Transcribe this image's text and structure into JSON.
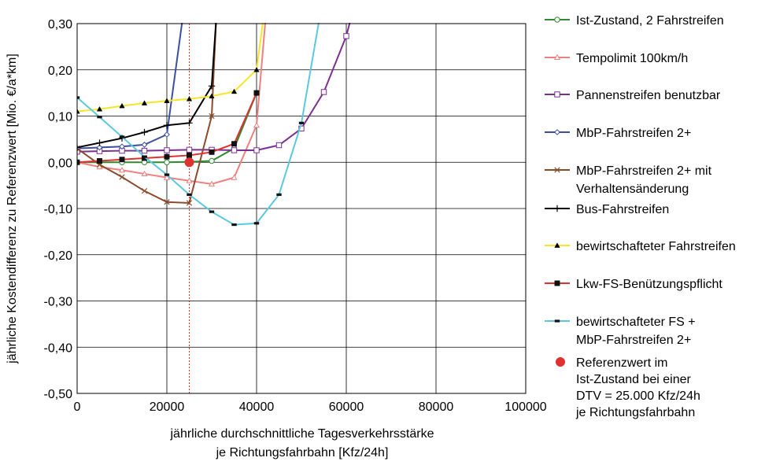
{
  "chart_data": {
    "type": "line",
    "xlabel": [
      "jährliche durchschnittliche Tagesverkehrsstärke",
      "je Richtungsfahrbahn [Kfz/24h]"
    ],
    "ylabel": "jährliche Kostendifferenz zu Referenzwert [Mio. €/a*km]",
    "xlim": [
      0,
      100000
    ],
    "ylim": [
      -0.5,
      0.3
    ],
    "xticks": [
      0,
      20000,
      40000,
      60000,
      80000,
      100000
    ],
    "xtick_labels": [
      "0",
      "20000",
      "40000",
      "60000",
      "80000",
      "100000"
    ],
    "yticks": [
      0.3,
      0.2,
      0.1,
      0.0,
      -0.1,
      -0.2,
      -0.3,
      -0.4,
      -0.5
    ],
    "ytick_labels": [
      "0,30",
      "0,20",
      "0,10",
      "0,00",
      "-0,10",
      "-0,20",
      "-0,30",
      "-0,40",
      "-0,50"
    ],
    "grid": "horizontal and vertical",
    "legend_position": "right",
    "series": [
      {
        "name": "Ist-Zustand, 2 Fahrstreifen",
        "color": "#2e8b2e",
        "marker": "circle-open",
        "x": [
          0,
          5000,
          10000,
          15000,
          20000,
          25000,
          30000,
          35000,
          40000
        ],
        "y": [
          0.0,
          0.0,
          0.0,
          0.0,
          0.0,
          0.001,
          0.003,
          0.03,
          0.15
        ]
      },
      {
        "name": "Tempolimit 100km/h",
        "color": "#f08080",
        "marker": "triangle-open",
        "x": [
          0,
          5000,
          10000,
          15000,
          20000,
          25000,
          30000,
          35000,
          40000,
          42000
        ],
        "y": [
          0.0,
          -0.01,
          -0.017,
          -0.025,
          -0.033,
          -0.04,
          -0.047,
          -0.033,
          0.08,
          0.31
        ]
      },
      {
        "name": "Pannenstreifen benutzbar",
        "color": "#7b2f8f",
        "marker": "square-open",
        "x": [
          0,
          5000,
          10000,
          15000,
          20000,
          25000,
          30000,
          35000,
          40000,
          45000,
          50000,
          55000,
          60000,
          61000
        ],
        "y": [
          0.023,
          0.024,
          0.025,
          0.025,
          0.026,
          0.027,
          0.027,
          0.026,
          0.026,
          0.037,
          0.073,
          0.152,
          0.273,
          0.31
        ]
      },
      {
        "name": "MbP-Fahrstreifen 2+",
        "color": "#3a4fa0",
        "marker": "diamond-open",
        "x": [
          0,
          5000,
          10000,
          15000,
          20000,
          23500
        ],
        "y": [
          0.03,
          0.032,
          0.034,
          0.038,
          0.06,
          0.31
        ]
      },
      {
        "name": "MbP-Fahrstreifen 2+ mit Verhaltensänderung",
        "color": "#8b4a2b",
        "marker": "x",
        "x": [
          0,
          5000,
          10000,
          15000,
          20000,
          25000,
          30000,
          31000
        ],
        "y": [
          0.03,
          -0.005,
          -0.032,
          -0.062,
          -0.086,
          -0.088,
          0.1,
          0.31
        ]
      },
      {
        "name": "Bus-Fahrstreifen",
        "color": "#000000",
        "marker": "plus",
        "x": [
          0,
          5000,
          10000,
          15000,
          20000,
          25000,
          30000,
          31000
        ],
        "y": [
          0.032,
          0.042,
          0.052,
          0.065,
          0.08,
          0.085,
          0.165,
          0.31
        ]
      },
      {
        "name": "bewirtschafteter Fahrstreifen",
        "color": "#f5e62a",
        "marker": "triangle-filled",
        "x": [
          0,
          5000,
          10000,
          15000,
          20000,
          25000,
          30000,
          35000,
          40000,
          41500
        ],
        "y": [
          0.11,
          0.115,
          0.122,
          0.128,
          0.133,
          0.137,
          0.143,
          0.153,
          0.2,
          0.31
        ]
      },
      {
        "name": "Lkw-FS-Benützungspflicht",
        "color": "#e03030",
        "marker": "square-filled",
        "x": [
          0,
          5000,
          10000,
          15000,
          20000,
          25000,
          30000,
          35000,
          40000
        ],
        "y": [
          0.0,
          0.003,
          0.006,
          0.009,
          0.012,
          0.015,
          0.022,
          0.04,
          0.15
        ]
      },
      {
        "name": "bewirtschafteter FS + MbP-Fahrstreifen 2+",
        "color": "#5bc8e0",
        "marker": "dash",
        "x": [
          0,
          5000,
          10000,
          15000,
          20000,
          25000,
          30000,
          35000,
          40000,
          45000,
          50000,
          54000
        ],
        "y": [
          0.14,
          0.098,
          0.055,
          0.012,
          -0.027,
          -0.07,
          -0.107,
          -0.135,
          -0.132,
          -0.07,
          0.085,
          0.31
        ]
      }
    ],
    "reference": {
      "name": "Referenzwert im Ist-Zustand bei einer DTV = 25.000 Kfz/24h je Richtungsfahrbahn",
      "x": 25000,
      "y": 0.0,
      "color": "#e03030"
    }
  },
  "legend_lines": {
    "ist": [
      "Ist-Zustand, 2 Fahrstreifen"
    ],
    "tempo": [
      "Tempolimit 100km/h"
    ],
    "pannen": [
      "Pannenstreifen benutzbar"
    ],
    "mbp": [
      "MbP-Fahrstreifen 2+"
    ],
    "mbpv": [
      "MbP-Fahrstreifen 2+ mit",
      "Verhaltensänderung"
    ],
    "bus": [
      "Bus-Fahrstreifen"
    ],
    "bew": [
      "bewirtschafteter Fahrstreifen"
    ],
    "lkw": [
      "Lkw-FS-Benützungspflicht"
    ],
    "bewmbp": [
      "bewirtschafteter FS +",
      "MbP-Fahrstreifen 2+"
    ],
    "ref": [
      "Referenzwert im",
      "Ist-Zustand bei einer",
      "DTV = 25.000 Kfz/24h",
      "je Richtungsfahrbahn"
    ]
  }
}
